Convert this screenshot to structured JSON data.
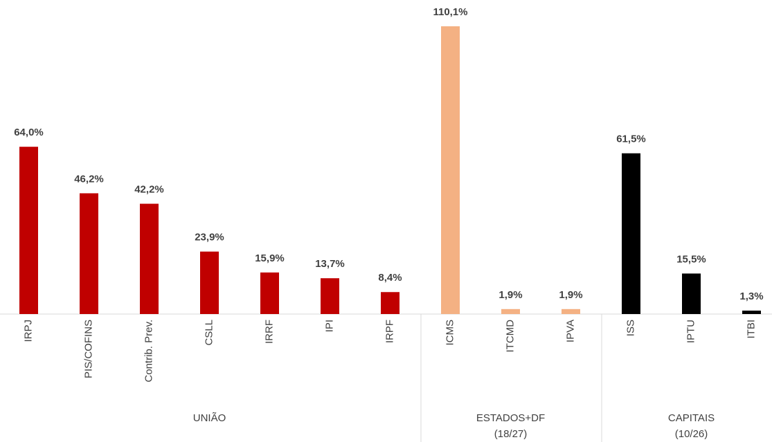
{
  "chart_data": {
    "type": "bar",
    "categories": [
      "IRPJ",
      "PIS/COFINS",
      "Contrib. Prev.",
      "CSLL",
      "IRRF",
      "IPI",
      "IRPF",
      "ICMS",
      "ITCMD",
      "IPVA",
      "ISS",
      "IPTU",
      "ITBI"
    ],
    "values": [
      64.0,
      46.2,
      42.2,
      23.9,
      15.9,
      13.7,
      8.4,
      110.1,
      1.9,
      1.9,
      61.5,
      15.5,
      1.3
    ],
    "value_labels": [
      "64,0%",
      "46,2%",
      "42,2%",
      "23,9%",
      "15,9%",
      "13,7%",
      "8,4%",
      "110,1%",
      "1,9%",
      "1,9%",
      "61,5%",
      "15,5%",
      "1,3%"
    ],
    "groups": [
      {
        "lines": [
          "UNIÃO"
        ],
        "start": 0,
        "end": 6,
        "color": "#c00000"
      },
      {
        "lines": [
          "ESTADOS+DF",
          "(18/27)"
        ],
        "start": 7,
        "end": 9,
        "color": "#f4b183"
      },
      {
        "lines": [
          "CAPITAIS",
          "(10/26)"
        ],
        "start": 10,
        "end": 12,
        "color": "#000000"
      }
    ]
  }
}
